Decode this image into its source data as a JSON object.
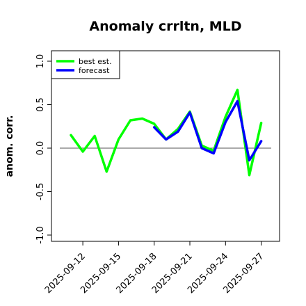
{
  "chart_data": {
    "type": "line",
    "title": "Anomaly crrltn, MLD",
    "xlabel": "",
    "ylabel": "anom. corr.",
    "ylim": [
      -1.0,
      1.0
    ],
    "yticks": [
      -1.0,
      -0.5,
      0.0,
      0.5,
      1.0
    ],
    "ytick_labels": [
      "-1.0",
      "-0.5",
      "0.0",
      "0.5",
      "1.0"
    ],
    "x_dates": [
      "2025-09-11",
      "2025-09-12",
      "2025-09-13",
      "2025-09-14",
      "2025-09-15",
      "2025-09-16",
      "2025-09-17",
      "2025-09-18",
      "2025-09-19",
      "2025-09-20",
      "2025-09-21",
      "2025-09-22",
      "2025-09-23",
      "2025-09-24",
      "2025-09-25",
      "2025-09-26",
      "2025-09-27"
    ],
    "xticks": [
      {
        "date": "2025-09-12",
        "label": "2025-09-12",
        "color": "#000000"
      },
      {
        "date": "2025-09-15",
        "label": "2025-09-15",
        "color": "#000000"
      },
      {
        "date": "2025-09-18",
        "label": "2025-09-18",
        "color": "#228B22"
      },
      {
        "date": "2025-09-21",
        "label": "2025-09-21",
        "color": "#000000"
      },
      {
        "date": "2025-09-24",
        "label": "2025-09-24",
        "color": "#000000"
      },
      {
        "date": "2025-09-27",
        "label": "2025-09-27",
        "color": "#000000"
      }
    ],
    "zero_line": true,
    "legend_position": "top-left",
    "series": [
      {
        "name": "best est.",
        "color": "#00FF00",
        "x": [
          "2025-09-11",
          "2025-09-12",
          "2025-09-13",
          "2025-09-14",
          "2025-09-15",
          "2025-09-16",
          "2025-09-17",
          "2025-09-18",
          "2025-09-19",
          "2025-09-20",
          "2025-09-21",
          "2025-09-22",
          "2025-09-23",
          "2025-09-24",
          "2025-09-25",
          "2025-09-26",
          "2025-09-27"
        ],
        "values": [
          0.15,
          -0.04,
          0.14,
          -0.27,
          0.1,
          0.32,
          0.34,
          0.28,
          0.1,
          0.22,
          0.42,
          0.03,
          -0.03,
          0.36,
          0.67,
          -0.31,
          0.29
        ]
      },
      {
        "name": "forecast",
        "color": "#0000FF",
        "x": [
          "2025-09-18",
          "2025-09-19",
          "2025-09-20",
          "2025-09-21",
          "2025-09-22",
          "2025-09-23",
          "2025-09-24",
          "2025-09-25",
          "2025-09-26",
          "2025-09-27"
        ],
        "values": [
          0.24,
          0.1,
          0.19,
          0.41,
          0.0,
          -0.06,
          0.3,
          0.54,
          -0.14,
          0.08
        ]
      }
    ]
  }
}
